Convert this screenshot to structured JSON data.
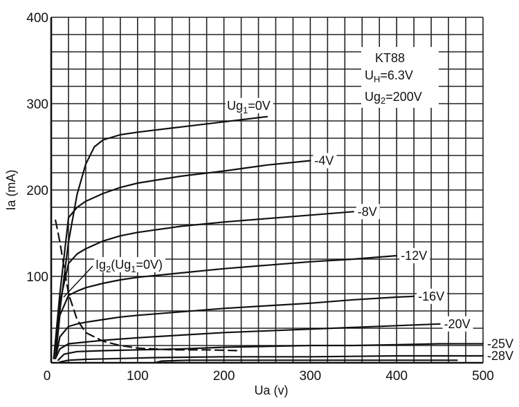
{
  "chart_data": {
    "type": "line",
    "annotations": {
      "tube": "KT88",
      "heater_prefix": "U",
      "heater_sub": "H",
      "heater_suffix": "=6.3V",
      "screen_prefix": "Ug",
      "screen_sub": "2",
      "screen_suffix": "=200V"
    },
    "xlabel": "Ua (v)",
    "ylabel": "Ia (mA)",
    "xlim": [
      0,
      500
    ],
    "ylim": [
      0,
      400
    ],
    "xticks": [
      "0",
      "100",
      "200",
      "300",
      "400",
      "500"
    ],
    "yticks": [
      "100",
      "200",
      "300",
      "400"
    ],
    "grid": true,
    "series": [
      {
        "label_prefix": "Ug",
        "label_sub": "1",
        "label_suffix": "=0V",
        "x": [
          3,
          10,
          20,
          30,
          40,
          50,
          60,
          80,
          100,
          150,
          200,
          250
        ],
        "y": [
          5,
          60,
          140,
          195,
          230,
          250,
          258,
          264,
          267,
          273,
          279,
          285
        ]
      },
      {
        "label_prefix": "",
        "label_sub": "",
        "label_suffix": "-4V",
        "x": [
          3,
          10,
          20,
          30,
          40,
          60,
          80,
          100,
          150,
          200,
          250,
          300
        ],
        "y": [
          5,
          80,
          168,
          180,
          187,
          196,
          203,
          208,
          216,
          222,
          229,
          234
        ]
      },
      {
        "label_prefix": "",
        "label_sub": "",
        "label_suffix": "-8V",
        "x": [
          3,
          10,
          20,
          30,
          40,
          60,
          80,
          100,
          150,
          200,
          250,
          300,
          350
        ],
        "y": [
          5,
          70,
          115,
          126,
          132,
          141,
          147,
          151,
          158,
          163,
          167,
          171,
          175
        ]
      },
      {
        "label_prefix": "",
        "label_sub": "",
        "label_suffix": "-12V",
        "x": [
          5,
          10,
          20,
          30,
          40,
          60,
          80,
          100,
          150,
          200,
          250,
          300,
          350,
          400
        ],
        "y": [
          5,
          55,
          78,
          83,
          87,
          92,
          96,
          99,
          104,
          109,
          113,
          117,
          120,
          124
        ]
      },
      {
        "label_prefix": "",
        "label_sub": "",
        "label_suffix": "-16V",
        "x": [
          5,
          10,
          20,
          30,
          40,
          60,
          80,
          100,
          150,
          200,
          250,
          300,
          350,
          400,
          420
        ],
        "y": [
          5,
          30,
          42,
          45,
          47,
          50,
          53,
          55,
          59,
          63,
          66,
          69,
          73,
          76,
          77
        ]
      },
      {
        "label_prefix": "",
        "label_sub": "",
        "label_suffix": "-20V",
        "x": [
          5,
          10,
          20,
          40,
          60,
          100,
          150,
          200,
          250,
          300,
          350,
          400,
          450
        ],
        "y": [
          5,
          16,
          22,
          24,
          26,
          29,
          32,
          35,
          37,
          39,
          41,
          43,
          45
        ]
      },
      {
        "label_prefix": "",
        "label_sub": "",
        "label_suffix": "-25V",
        "x": [
          8,
          15,
          30,
          60,
          100,
          150,
          200,
          250,
          300,
          350,
          400,
          450,
          500
        ],
        "y": [
          3,
          10,
          13,
          14,
          15,
          16,
          18,
          19,
          20,
          20,
          21,
          22,
          22
        ]
      },
      {
        "label_prefix": "",
        "label_sub": "",
        "label_suffix": "-28V",
        "x": [
          10,
          20,
          40,
          80,
          120,
          200,
          300,
          400,
          500
        ],
        "y": [
          1,
          3,
          4,
          5,
          6,
          7,
          7,
          8,
          8
        ]
      },
      {
        "label_prefix": "",
        "label_sub": "",
        "label_suffix": "",
        "x": [
          120,
          128,
          160,
          220,
          300,
          380,
          470
        ],
        "y": [
          0,
          2,
          3,
          3,
          3,
          3,
          3
        ]
      },
      {
        "label_prefix": "Ig",
        "label_sub": "2",
        "label_suffix": "(Ug",
        "label_sub2": "1",
        "label_suffix2": "=0V)",
        "dashed": true,
        "x": [
          5,
          10,
          15,
          20,
          30,
          40,
          60,
          80,
          100,
          140,
          180,
          220
        ],
        "y": [
          165,
          140,
          110,
          80,
          50,
          35,
          25,
          20,
          17,
          15,
          15,
          14
        ]
      }
    ]
  }
}
